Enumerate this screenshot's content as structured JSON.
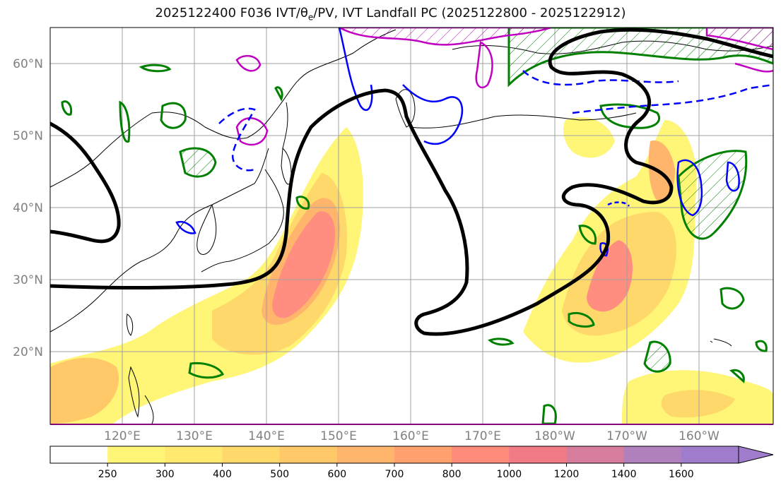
{
  "figure": {
    "title_prefix": "2025122400 F036 IVT/",
    "title_theta": "θ",
    "title_sub": "e",
    "title_suffix": "/PV, IVT Landfall PC (2025122800 - 2025122912)"
  },
  "map": {
    "lat_labels": [
      "60°N",
      "50°N",
      "40°N",
      "30°N",
      "20°N"
    ],
    "lon_labels": [
      "120°E",
      "130°E",
      "140°E",
      "150°E",
      "160°E",
      "170°E",
      "180°W",
      "170°W",
      "160°W"
    ],
    "fill_colors": {
      "ivt_low": "#fff577",
      "ivt_mid": "#ffc166",
      "ivt_high": "#ff8d80",
      "ivt_peak": "#f07888",
      "pv_contour": "#008000",
      "theta_solid": "#0000ff",
      "theta_dashed": "#0000ff",
      "ivt_pc_contour": "#000000",
      "magenta_contour": "#c000c0",
      "coastline": "#000000",
      "grid": "#a0a0a0"
    }
  },
  "colorbar": {
    "ticks": [
      "250",
      "300",
      "400",
      "500",
      "600",
      "700",
      "800",
      "1000",
      "1200",
      "1400",
      "1600"
    ],
    "colors": [
      "#ffffff",
      "#fff577",
      "#ffe970",
      "#ffd86c",
      "#ffc96a",
      "#ffb56b",
      "#ffa06e",
      "#ff8b7b",
      "#f07a86",
      "#d67c9c",
      "#b080bd",
      "#a07ccc"
    ]
  }
}
